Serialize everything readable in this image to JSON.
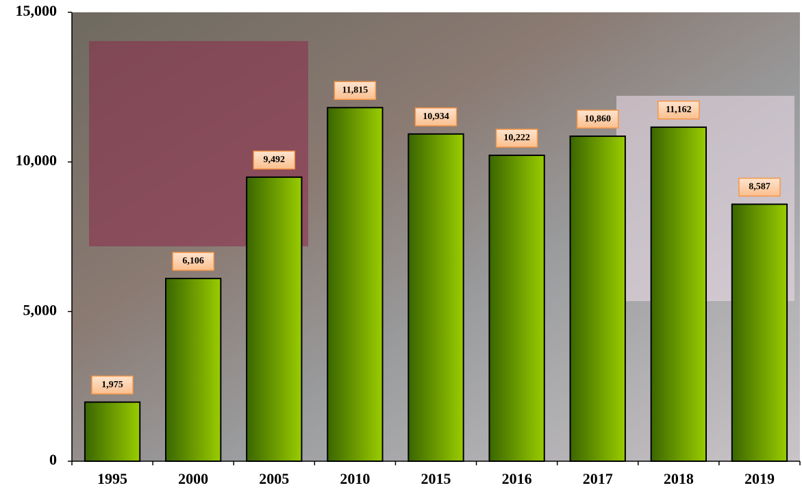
{
  "chart_data": {
    "type": "bar",
    "categories": [
      "1995",
      "2000",
      "2005",
      "2010",
      "2015",
      "2016",
      "2017",
      "2018",
      "2019"
    ],
    "values": [
      1975,
      6106,
      9492,
      11815,
      10934,
      10222,
      10860,
      11162,
      8587
    ],
    "value_labels": [
      "1,975",
      "6,106",
      "9,492",
      "11,815",
      "10,934",
      "10,222",
      "10,860",
      "11,162",
      "8,587"
    ],
    "color": "#99cc00",
    "ylim": [
      0,
      15000
    ],
    "yticks": [
      0,
      {
        "value": 5000,
        "label": "5,000"
      },
      {
        "value": 10000,
        "label": "10,000"
      },
      {
        "value": 15000,
        "label": "15,000"
      }
    ],
    "grid": false
  }
}
